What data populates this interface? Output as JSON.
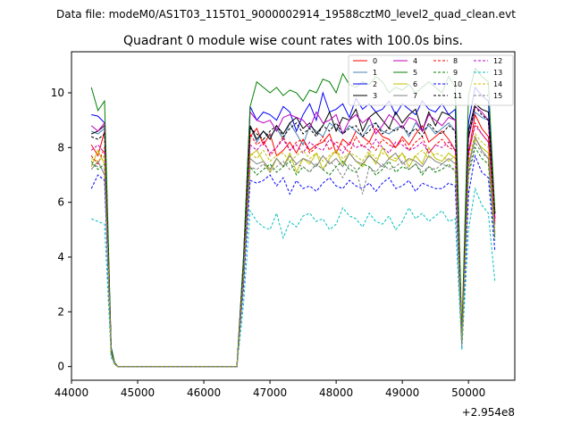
{
  "figure": {
    "suptitle": "Data file: modeM0/AS1T03_115T01_9000002914_19588cztM0_level2_quad_clean.evt"
  },
  "chart_data": {
    "type": "line",
    "title": "Quadrant 0 module wise count rates with 100.0s bins.",
    "xlabel": "",
    "ylabel": "",
    "x_offset_label": "+2.954e8",
    "xlim": [
      44000,
      50700
    ],
    "ylim": [
      -0.5,
      11.5
    ],
    "xticks": [
      44000,
      45000,
      46000,
      47000,
      48000,
      49000,
      50000
    ],
    "yticks": [
      0,
      2,
      4,
      6,
      8,
      10
    ],
    "x": [
      44300,
      44400,
      44500,
      44600,
      44650,
      44700,
      44800,
      44900,
      45000,
      45100,
      45200,
      45300,
      45400,
      45500,
      45600,
      45700,
      45800,
      45900,
      46000,
      46100,
      46200,
      46300,
      46400,
      46500,
      46600,
      46700,
      46800,
      46900,
      47000,
      47100,
      47200,
      47300,
      47400,
      47500,
      47600,
      47700,
      47800,
      47900,
      48000,
      48100,
      48200,
      48300,
      48400,
      48500,
      48600,
      48700,
      48800,
      48900,
      49000,
      49100,
      49200,
      49300,
      49400,
      49500,
      49600,
      49700,
      49800,
      49900,
      50000,
      50100,
      50200,
      50300,
      50400
    ],
    "legend": {
      "placement": "upper right",
      "ncol": 4
    },
    "series": [
      {
        "name": "0",
        "color": "#ff0000",
        "style": "solid",
        "values": [
          8.1,
          7.7,
          8.6,
          0.6,
          0.15,
          0,
          0,
          0,
          0,
          0,
          0,
          0,
          0,
          0,
          0,
          0,
          0,
          0,
          0,
          0,
          0,
          0,
          0,
          0,
          3.5,
          8.4,
          8.7,
          8.1,
          8.5,
          7.7,
          7.9,
          8.2,
          7.8,
          8.3,
          7.9,
          8.1,
          8.2,
          8.5,
          7.8,
          8.3,
          8.1,
          8.6,
          8.4,
          8.2,
          8.7,
          8.4,
          8.3,
          8.0,
          8.4,
          8.1,
          8.5,
          8.8,
          8.2,
          8.4,
          8.6,
          8.3,
          7.9,
          1.2,
          7.8,
          9.2,
          8.7,
          8.4,
          5.6
        ]
      },
      {
        "name": "1",
        "color": "#4682b4",
        "style": "solid",
        "values": [
          8.6,
          8.5,
          8.7,
          0.55,
          0.1,
          0,
          0,
          0,
          0,
          0,
          0,
          0,
          0,
          0,
          0,
          0,
          0,
          0,
          0,
          0,
          0,
          0,
          0,
          0,
          3.8,
          8.8,
          8.2,
          8.6,
          8.4,
          8.7,
          8.3,
          8.9,
          8.5,
          8.1,
          8.8,
          8.6,
          8.4,
          8.9,
          8.7,
          8.5,
          8.8,
          8.6,
          8.4,
          8.8,
          8.9,
          8.6,
          8.5,
          8.7,
          8.8,
          8.4,
          8.9,
          8.6,
          8.8,
          8.5,
          8.7,
          8.9,
          8.6,
          1.0,
          8.4,
          9.3,
          9.1,
          9.0,
          5.2
        ]
      },
      {
        "name": "2",
        "color": "#0000ff",
        "style": "solid",
        "values": [
          9.2,
          9.15,
          8.9,
          0.7,
          0.15,
          0,
          0,
          0,
          0,
          0,
          0,
          0,
          0,
          0,
          0,
          0,
          0,
          0,
          0,
          0,
          0,
          0,
          0,
          0,
          4.0,
          9.5,
          9.0,
          9.3,
          9.2,
          9.0,
          9.5,
          9.3,
          8.6,
          9.2,
          9.6,
          9.0,
          10.0,
          9.3,
          9.4,
          9.6,
          9.1,
          9.8,
          9.4,
          9.6,
          9.3,
          9.4,
          9.7,
          9.2,
          9.6,
          9.4,
          9.2,
          9.7,
          9.4,
          9.3,
          9.6,
          9.2,
          9.4,
          1.1,
          8.9,
          10.2,
          9.9,
          9.7,
          5.4
        ]
      },
      {
        "name": "3",
        "color": "#000000",
        "style": "solid",
        "values": [
          8.5,
          8.6,
          8.8,
          0.6,
          0.1,
          0,
          0,
          0,
          0,
          0,
          0,
          0,
          0,
          0,
          0,
          0,
          0,
          0,
          0,
          0,
          0,
          0,
          0,
          0,
          3.7,
          8.8,
          8.3,
          8.6,
          8.3,
          8.8,
          8.5,
          8.9,
          9.1,
          8.7,
          8.9,
          8.5,
          8.8,
          9.3,
          8.6,
          9.1,
          9.0,
          9.4,
          8.6,
          9.1,
          9.3,
          9.0,
          8.7,
          9.3,
          8.9,
          9.2,
          9.4,
          8.6,
          9.3,
          8.8,
          9.3,
          9.2,
          9.0,
          0.9,
          8.6,
          9.6,
          9.4,
          9.3,
          5.6
        ]
      },
      {
        "name": "4",
        "color": "#bf00bf",
        "style": "solid",
        "values": [
          8.8,
          8.6,
          8.9,
          0.6,
          0.1,
          0,
          0,
          0,
          0,
          0,
          0,
          0,
          0,
          0,
          0,
          0,
          0,
          0,
          0,
          0,
          0,
          0,
          0,
          0,
          3.9,
          9.3,
          9.0,
          8.9,
          9.0,
          8.6,
          9.1,
          9.2,
          9.1,
          9.0,
          8.7,
          9.3,
          8.9,
          9.0,
          9.2,
          8.5,
          9.0,
          9.2,
          8.9,
          9.1,
          8.5,
          8.8,
          9.2,
          9.0,
          8.7,
          9.1,
          9.0,
          8.6,
          9.2,
          9.0,
          8.8,
          9.1,
          9.0,
          1.0,
          8.3,
          9.5,
          9.3,
          9.0,
          5.4
        ]
      },
      {
        "name": "5",
        "color": "#008000",
        "style": "solid",
        "values": [
          10.2,
          9.35,
          9.7,
          0.7,
          0.15,
          0,
          0,
          0,
          0,
          0,
          0,
          0,
          0,
          0,
          0,
          0,
          0,
          0,
          0,
          0,
          0,
          0,
          0,
          0,
          4.0,
          9.5,
          10.4,
          10.2,
          10.0,
          10.2,
          9.9,
          10.1,
          10.0,
          9.7,
          10.1,
          10.0,
          10.5,
          10.4,
          10.0,
          10.7,
          10.3,
          10.2,
          10.4,
          10.3,
          10.6,
          10.4,
          10.0,
          10.2,
          10.1,
          10.3,
          10.0,
          10.2,
          10.4,
          10.2,
          10.0,
          10.6,
          10.2,
          1.2,
          9.9,
          10.9,
          10.6,
          10.4,
          5.6
        ]
      },
      {
        "name": "6",
        "color": "#bfbf00",
        "style": "solid",
        "values": [
          7.3,
          7.9,
          7.4,
          0.5,
          0.1,
          0,
          0,
          0,
          0,
          0,
          0,
          0,
          0,
          0,
          0,
          0,
          0,
          0,
          0,
          0,
          0,
          0,
          0,
          0,
          3.3,
          7.7,
          7.9,
          7.5,
          7.1,
          7.6,
          7.3,
          7.8,
          7.1,
          7.6,
          7.4,
          7.8,
          7.2,
          7.6,
          7.9,
          7.4,
          7.8,
          7.5,
          7.3,
          7.8,
          7.4,
          8.0,
          7.6,
          7.5,
          7.8,
          7.3,
          7.7,
          7.4,
          8.0,
          7.6,
          7.5,
          7.8,
          7.6,
          0.9,
          7.4,
          8.3,
          8.0,
          7.8,
          4.8
        ]
      },
      {
        "name": "7",
        "color": "#808080",
        "style": "solid",
        "values": [
          7.2,
          7.5,
          7.0,
          0.5,
          0.1,
          0,
          0,
          0,
          0,
          0,
          0,
          0,
          0,
          0,
          0,
          0,
          0,
          0,
          0,
          0,
          0,
          0,
          0,
          0,
          3.2,
          7.6,
          7.4,
          7.5,
          7.2,
          7.6,
          7.3,
          7.7,
          7.4,
          7.6,
          7.5,
          7.3,
          7.7,
          7.4,
          7.6,
          7.3,
          7.8,
          7.5,
          7.4,
          7.7,
          7.5,
          7.3,
          7.6,
          7.8,
          7.4,
          7.6,
          7.5,
          7.3,
          7.7,
          7.5,
          7.4,
          7.6,
          7.4,
          0.8,
          7.3,
          8.4,
          7.9,
          7.6,
          4.9
        ]
      },
      {
        "name": "8",
        "color": "#ff0000",
        "style": "dashed",
        "values": [
          7.7,
          7.4,
          8.0,
          0.5,
          0.1,
          0,
          0,
          0,
          0,
          0,
          0,
          0,
          0,
          0,
          0,
          0,
          0,
          0,
          0,
          0,
          0,
          0,
          0,
          0,
          3.4,
          8.5,
          8.1,
          8.3,
          7.7,
          8.0,
          8.4,
          7.9,
          8.2,
          8.3,
          7.8,
          8.0,
          8.4,
          7.9,
          8.2,
          8.1,
          7.8,
          8.4,
          8.0,
          8.2,
          7.9,
          8.3,
          8.1,
          8.0,
          8.3,
          7.9,
          8.2,
          8.4,
          7.8,
          8.1,
          8.3,
          8.0,
          7.9,
          1.0,
          7.7,
          8.9,
          8.5,
          8.2,
          5.3
        ]
      },
      {
        "name": "9",
        "color": "#008000",
        "style": "dashed",
        "values": [
          7.5,
          7.2,
          7.4,
          0.5,
          0.1,
          0,
          0,
          0,
          0,
          0,
          0,
          0,
          0,
          0,
          0,
          0,
          0,
          0,
          0,
          0,
          0,
          0,
          0,
          0,
          3.2,
          7.3,
          7.0,
          7.2,
          7.4,
          7.1,
          7.3,
          7.5,
          7.0,
          7.3,
          7.1,
          7.4,
          7.2,
          7.0,
          7.3,
          7.5,
          7.2,
          7.1,
          7.4,
          7.3,
          7.0,
          7.2,
          7.5,
          7.1,
          7.3,
          7.2,
          7.4,
          7.0,
          7.3,
          7.1,
          7.2,
          7.4,
          7.1,
          0.8,
          7.0,
          8.0,
          7.6,
          7.4,
          4.6
        ]
      },
      {
        "name": "10",
        "color": "#0000ff",
        "style": "dashed",
        "values": [
          6.5,
          7.0,
          6.8,
          0.4,
          0.1,
          0,
          0,
          0,
          0,
          0,
          0,
          0,
          0,
          0,
          0,
          0,
          0,
          0,
          0,
          0,
          0,
          0,
          0,
          0,
          2.9,
          6.8,
          6.7,
          6.8,
          7.0,
          6.6,
          6.9,
          6.3,
          6.8,
          6.5,
          6.6,
          6.4,
          6.7,
          6.9,
          6.6,
          6.5,
          6.8,
          6.6,
          6.5,
          6.7,
          6.4,
          6.7,
          6.9,
          6.5,
          6.6,
          6.8,
          6.4,
          6.7,
          6.6,
          6.5,
          6.5,
          6.7,
          6.6,
          0.7,
          6.3,
          7.7,
          7.1,
          6.9,
          4.2
        ]
      },
      {
        "name": "11",
        "color": "#000000",
        "style": "dashed",
        "values": [
          8.4,
          8.3,
          8.5,
          0.6,
          0.1,
          0,
          0,
          0,
          0,
          0,
          0,
          0,
          0,
          0,
          0,
          0,
          0,
          0,
          0,
          0,
          0,
          0,
          0,
          0,
          3.6,
          8.7,
          8.5,
          8.3,
          8.6,
          8.8,
          8.4,
          8.7,
          8.9,
          8.5,
          8.7,
          8.4,
          8.8,
          8.6,
          8.9,
          8.5,
          8.7,
          8.8,
          8.4,
          8.6,
          8.9,
          8.5,
          8.7,
          8.6,
          8.8,
          8.5,
          8.7,
          8.4,
          8.9,
          8.6,
          8.5,
          8.8,
          8.6,
          0.9,
          8.4,
          9.5,
          9.2,
          9.0,
          5.5
        ]
      },
      {
        "name": "12",
        "color": "#bf00bf",
        "style": "dashed",
        "values": [
          7.9,
          8.1,
          7.8,
          0.5,
          0.1,
          0,
          0,
          0,
          0,
          0,
          0,
          0,
          0,
          0,
          0,
          0,
          0,
          0,
          0,
          0,
          0,
          0,
          0,
          0,
          3.4,
          8.1,
          7.9,
          8.2,
          7.8,
          8.0,
          8.3,
          7.9,
          8.1,
          7.8,
          8.2,
          8.0,
          7.9,
          8.3,
          8.1,
          7.8,
          8.2,
          8.0,
          8.1,
          7.9,
          8.3,
          8.0,
          7.8,
          8.2,
          8.1,
          7.9,
          8.0,
          8.2,
          7.8,
          8.1,
          8.0,
          8.2,
          7.9,
          0.9,
          7.8,
          8.8,
          8.5,
          8.2,
          5.1
        ]
      },
      {
        "name": "13",
        "color": "#00bfbf",
        "style": "dashed",
        "values": [
          5.4,
          5.3,
          5.2,
          0.35,
          0.1,
          0,
          0,
          0,
          0,
          0,
          0,
          0,
          0,
          0,
          0,
          0,
          0,
          0,
          0,
          0,
          0,
          0,
          0,
          0,
          2.3,
          5.7,
          5.3,
          5.1,
          5.0,
          5.6,
          4.7,
          5.3,
          5.1,
          5.5,
          5.6,
          5.3,
          5.4,
          5.0,
          5.2,
          5.8,
          5.5,
          5.4,
          5.1,
          5.6,
          5.3,
          5.2,
          5.5,
          5.0,
          5.3,
          5.8,
          5.4,
          5.6,
          5.3,
          5.5,
          5.7,
          5.3,
          5.4,
          0.6,
          5.0,
          6.5,
          5.9,
          5.6,
          3.1
        ]
      },
      {
        "name": "14",
        "color": "#bfbf00",
        "style": "dashed",
        "values": [
          7.6,
          7.5,
          7.7,
          0.5,
          0.1,
          0,
          0,
          0,
          0,
          0,
          0,
          0,
          0,
          0,
          0,
          0,
          0,
          0,
          0,
          0,
          0,
          0,
          0,
          0,
          3.3,
          7.8,
          7.6,
          7.9,
          7.5,
          7.7,
          7.8,
          7.5,
          7.7,
          7.9,
          7.6,
          7.8,
          7.5,
          7.7,
          7.9,
          7.6,
          7.8,
          7.7,
          7.5,
          7.9,
          7.6,
          7.8,
          7.7,
          7.6,
          7.8,
          7.5,
          7.7,
          7.9,
          7.6,
          7.8,
          7.7,
          7.5,
          7.7,
          0.8,
          7.5,
          8.5,
          8.2,
          8.0,
          4.9
        ]
      },
      {
        "name": "15",
        "color": "#808080",
        "style": "dashed",
        "values": [
          7.4,
          7.3,
          7.2,
          0.5,
          0.1,
          0,
          0,
          0,
          0,
          0,
          0,
          0,
          0,
          0,
          0,
          0,
          0,
          0,
          0,
          0,
          0,
          0,
          0,
          0,
          3.1,
          7.3,
          7.2,
          7.4,
          7.1,
          7.3,
          7.5,
          7.2,
          7.4,
          7.3,
          7.1,
          7.4,
          7.2,
          7.5,
          7.3,
          6.9,
          7.4,
          7.2,
          6.3,
          7.3,
          7.1,
          7.4,
          7.2,
          7.3,
          7.5,
          7.2,
          7.4,
          7.1,
          7.3,
          7.2,
          7.4,
          7.3,
          7.2,
          0.8,
          7.1,
          8.2,
          7.8,
          7.6,
          4.7
        ]
      }
    ]
  }
}
